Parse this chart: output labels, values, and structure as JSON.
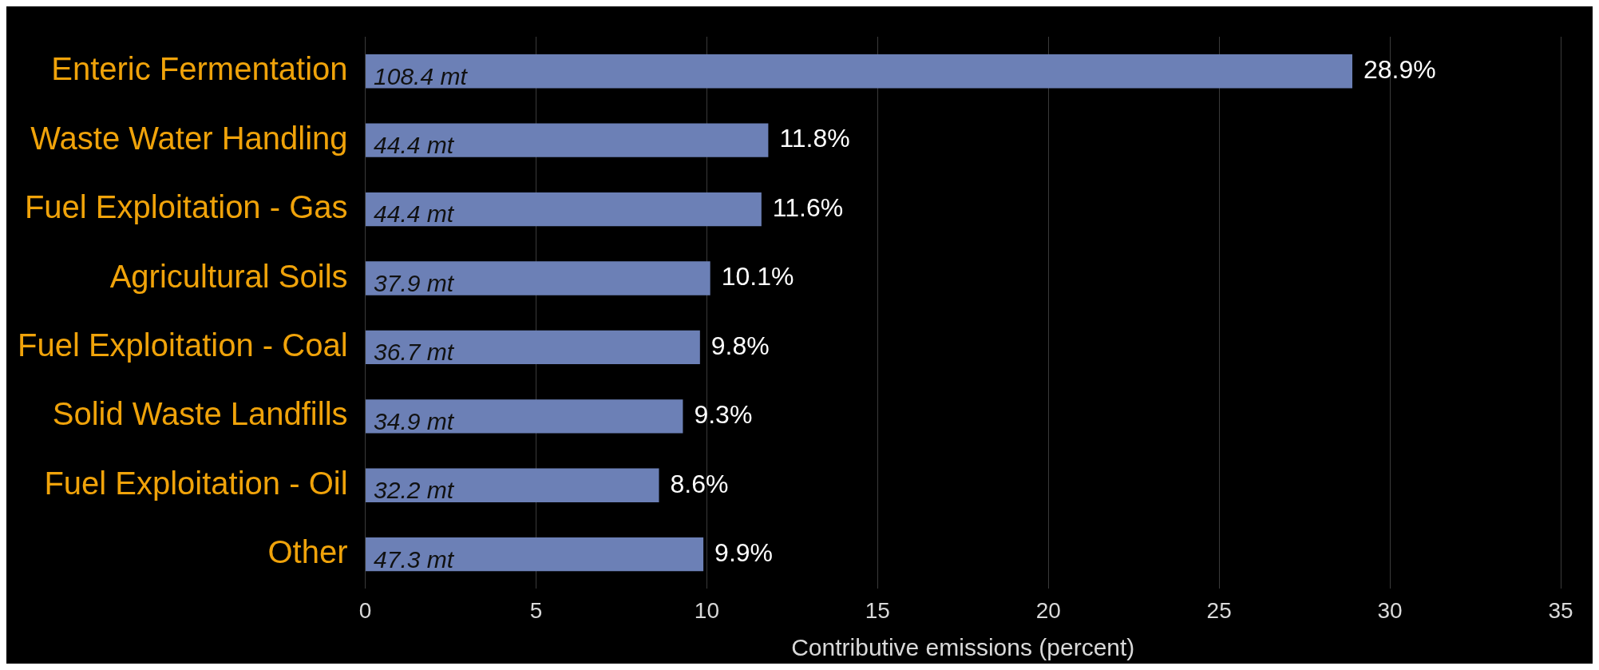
{
  "chart_data": {
    "type": "bar",
    "orientation": "horizontal",
    "categories": [
      "Enteric Fermentation",
      "Waste Water Handling",
      "Fuel Exploitation - Gas",
      "Agricultural Soils",
      "Fuel Exploitation - Coal",
      "Solid Waste Landfills",
      "Fuel Exploitation - Oil",
      "Other"
    ],
    "values": [
      28.9,
      11.8,
      11.6,
      10.1,
      9.8,
      9.3,
      8.6,
      9.9
    ],
    "value_labels": [
      "28.9%",
      "11.8%",
      "11.6%",
      "10.1%",
      "9.8%",
      "9.3%",
      "8.6%",
      "9.9%"
    ],
    "color": "#6c80b6",
    "xlabel": "Contributive emissions (percent)",
    "xlim": [
      0,
      35
    ],
    "xticks": [
      0,
      5,
      10,
      15,
      20,
      25,
      30,
      35
    ],
    "grid": "x",
    "legend": false,
    "annotations": [
      "108.4 mt",
      "44.4 mt",
      "44.4 mt",
      "37.9 mt",
      "36.7 mt",
      "34.9 mt",
      "32.2 mt",
      "47.3 mt"
    ]
  }
}
